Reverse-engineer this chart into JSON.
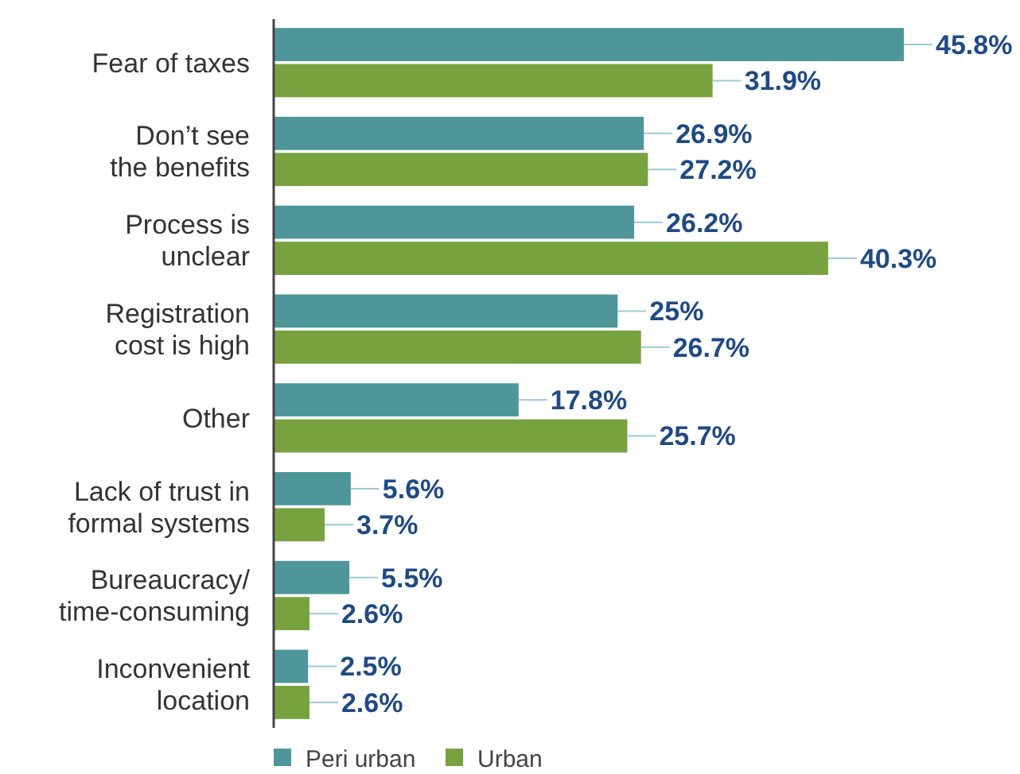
{
  "chart_data": {
    "type": "bar",
    "orientation": "horizontal",
    "categories": [
      "Fear of taxes",
      "Don’t see\nthe benefits",
      "Process is\nunclear",
      "Registration\ncost is high",
      "Other",
      "Lack of trust in\nformal systems",
      "Bureaucracy/\ntime-consuming",
      "Inconvenient\nlocation"
    ],
    "series": [
      {
        "name": "Peri urban",
        "color": "#4f969a",
        "values": [
          45.8,
          26.9,
          26.2,
          25,
          17.8,
          5.6,
          5.5,
          2.5
        ],
        "value_labels": [
          "45.8%",
          "26.9%",
          "26.2%",
          "25%",
          "17.8%",
          "5.6%",
          "5.5%",
          "2.5%"
        ]
      },
      {
        "name": "Urban",
        "color": "#78a240",
        "values": [
          31.9,
          27.2,
          40.3,
          26.7,
          25.7,
          3.7,
          2.6,
          2.6
        ],
        "value_labels": [
          "31.9%",
          "27.2%",
          "40.3%",
          "26.7%",
          "25.7%",
          "3.7%",
          "2.6%",
          "2.6%"
        ]
      }
    ],
    "legend": "bottom"
  }
}
